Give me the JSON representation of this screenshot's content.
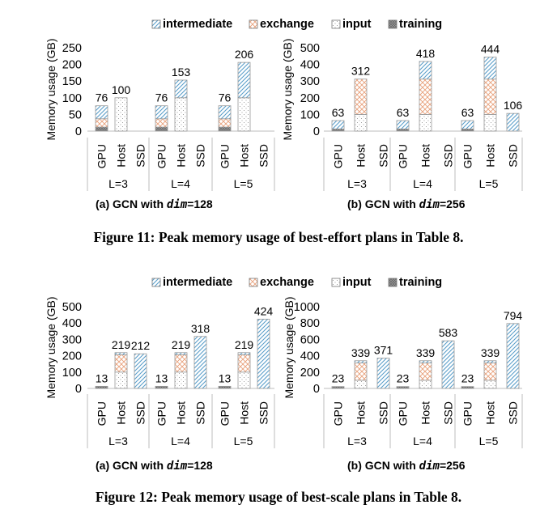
{
  "colors": {
    "intermediate": "#5a9ec9",
    "exchange": "#e8a07a",
    "input": "#888888",
    "training": "#7f7f7f",
    "bar_outline": "#9a9a9a",
    "axis": "#bdbdbd"
  },
  "legend": [
    "intermediate",
    "exchange",
    "input",
    "training"
  ],
  "figures": [
    {
      "caption": "Figure 11: Peak memory usage of best-effort plans in Table 8.",
      "panels": [
        {
          "subtitle_prefix": "(a) GCN with ",
          "subtitle_var": "dim",
          "subtitle_suffix": "=128"
        },
        {
          "subtitle_prefix": "(b) GCN with ",
          "subtitle_var": "dim",
          "subtitle_suffix": "=256"
        }
      ]
    },
    {
      "caption": "Figure 12: Peak memory usage of best-scale plans in Table 8.",
      "panels": [
        {
          "subtitle_prefix": "(a) GCN with ",
          "subtitle_var": "dim",
          "subtitle_suffix": "=128"
        },
        {
          "subtitle_prefix": "(b) GCN with ",
          "subtitle_var": "dim",
          "subtitle_suffix": "=256"
        }
      ]
    }
  ],
  "chart_data": [
    {
      "id": "fig11a",
      "type": "bar",
      "title": "(a) GCN with dim=128",
      "ylabel": "Memory usage (GB)",
      "ylim": [
        0,
        250
      ],
      "yticks": [
        0,
        50,
        100,
        150,
        200,
        250
      ],
      "groups": [
        "L=3",
        "L=4",
        "L=5"
      ],
      "categories": [
        "GPU",
        "Host",
        "SSD"
      ],
      "series_names": [
        "training",
        "input",
        "exchange",
        "intermediate"
      ],
      "bars": [
        [
          {
            "stack": [
              12,
              0,
              25,
              39
            ],
            "label": "76"
          },
          {
            "stack": [
              0,
              100,
              0,
              0
            ],
            "label": "100"
          },
          null
        ],
        [
          {
            "stack": [
              12,
              0,
              25,
              39
            ],
            "label": "76"
          },
          {
            "stack": [
              0,
              100,
              0,
              53
            ],
            "label": "153"
          },
          null
        ],
        [
          {
            "stack": [
              12,
              0,
              25,
              39
            ],
            "label": "76"
          },
          {
            "stack": [
              0,
              100,
              0,
              106
            ],
            "label": "206"
          },
          null
        ]
      ]
    },
    {
      "id": "fig11b",
      "type": "bar",
      "title": "(b) GCN with dim=256",
      "ylabel": "Memory usage (GB)",
      "ylim": [
        0,
        500
      ],
      "yticks": [
        0,
        100,
        200,
        300,
        400,
        500
      ],
      "groups": [
        "L=3",
        "L=4",
        "L=5"
      ],
      "categories": [
        "GPU",
        "Host",
        "SSD"
      ],
      "series_names": [
        "training",
        "input",
        "exchange",
        "intermediate"
      ],
      "bars": [
        [
          {
            "stack": [
              13,
              0,
              0,
              50
            ],
            "label": "63"
          },
          {
            "stack": [
              0,
              100,
              212,
              0
            ],
            "label": "312"
          },
          null
        ],
        [
          {
            "stack": [
              13,
              0,
              0,
              50
            ],
            "label": "63"
          },
          {
            "stack": [
              0,
              100,
              212,
              106
            ],
            "label": "418"
          },
          null
        ],
        [
          {
            "stack": [
              13,
              0,
              0,
              50
            ],
            "label": "63"
          },
          {
            "stack": [
              0,
              100,
              212,
              132
            ],
            "label": "444"
          },
          {
            "stack": [
              0,
              0,
              0,
              106
            ],
            "label": "106"
          }
        ]
      ]
    },
    {
      "id": "fig12a",
      "type": "bar",
      "title": "(a) GCN with dim=128",
      "ylabel": "Memory usage (GB)",
      "ylim": [
        0,
        500
      ],
      "yticks": [
        0,
        100,
        200,
        300,
        400,
        500
      ],
      "groups": [
        "L=3",
        "L=4",
        "L=5"
      ],
      "categories": [
        "GPU",
        "Host",
        "SSD"
      ],
      "series_names": [
        "training",
        "input",
        "exchange",
        "intermediate"
      ],
      "bars": [
        [
          {
            "stack": [
              13,
              0,
              0,
              0
            ],
            "label": "13"
          },
          {
            "stack": [
              0,
              100,
              106,
              13
            ],
            "label": "219"
          },
          {
            "stack": [
              0,
              0,
              0,
              212
            ],
            "label": "212"
          }
        ],
        [
          {
            "stack": [
              13,
              0,
              0,
              0
            ],
            "label": "13"
          },
          {
            "stack": [
              0,
              100,
              106,
              13
            ],
            "label": "219"
          },
          {
            "stack": [
              0,
              0,
              0,
              318
            ],
            "label": "318"
          }
        ],
        [
          {
            "stack": [
              13,
              0,
              0,
              0
            ],
            "label": "13"
          },
          {
            "stack": [
              0,
              100,
              106,
              13
            ],
            "label": "219"
          },
          {
            "stack": [
              0,
              0,
              0,
              424
            ],
            "label": "424"
          }
        ]
      ]
    },
    {
      "id": "fig12b",
      "type": "bar",
      "title": "(b) GCN with dim=256",
      "ylabel": "Memory usage (GB)",
      "ylim": [
        0,
        1000
      ],
      "yticks": [
        0,
        200,
        400,
        600,
        800,
        1000
      ],
      "groups": [
        "L=3",
        "L=4",
        "L=5"
      ],
      "categories": [
        "GPU",
        "Host",
        "SSD"
      ],
      "series_names": [
        "training",
        "input",
        "exchange",
        "intermediate"
      ],
      "bars": [
        [
          {
            "stack": [
              23,
              0,
              0,
              0
            ],
            "label": "23"
          },
          {
            "stack": [
              0,
              100,
              212,
              27
            ],
            "label": "339"
          },
          {
            "stack": [
              0,
              0,
              0,
              371
            ],
            "label": "371"
          }
        ],
        [
          {
            "stack": [
              23,
              0,
              0,
              0
            ],
            "label": "23"
          },
          {
            "stack": [
              0,
              100,
              212,
              27
            ],
            "label": "339"
          },
          {
            "stack": [
              0,
              0,
              0,
              583
            ],
            "label": "583"
          }
        ],
        [
          {
            "stack": [
              23,
              0,
              0,
              0
            ],
            "label": "23"
          },
          {
            "stack": [
              0,
              100,
              212,
              27
            ],
            "label": "339"
          },
          {
            "stack": [
              0,
              0,
              0,
              794
            ],
            "label": "794"
          }
        ]
      ]
    }
  ]
}
